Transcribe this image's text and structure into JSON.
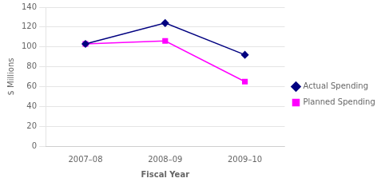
{
  "chart_data": {
    "type": "line",
    "xlabel": "Fiscal Year",
    "ylabel": "$ Millions",
    "categories": [
      "2007–08",
      "2008–09",
      "2009–10"
    ],
    "series": [
      {
        "name": "Actual Spending",
        "color": "#000080",
        "marker": "diamond",
        "values": [
          103,
          124,
          92
        ]
      },
      {
        "name": "Planned Spending",
        "color": "#FF00FF",
        "marker": "square",
        "values": [
          103,
          106,
          65
        ]
      }
    ],
    "ylim": [
      0,
      140
    ],
    "yticks": [
      0,
      20,
      40,
      60,
      80,
      100,
      120,
      140
    ],
    "grid": "y",
    "legend": "right"
  }
}
